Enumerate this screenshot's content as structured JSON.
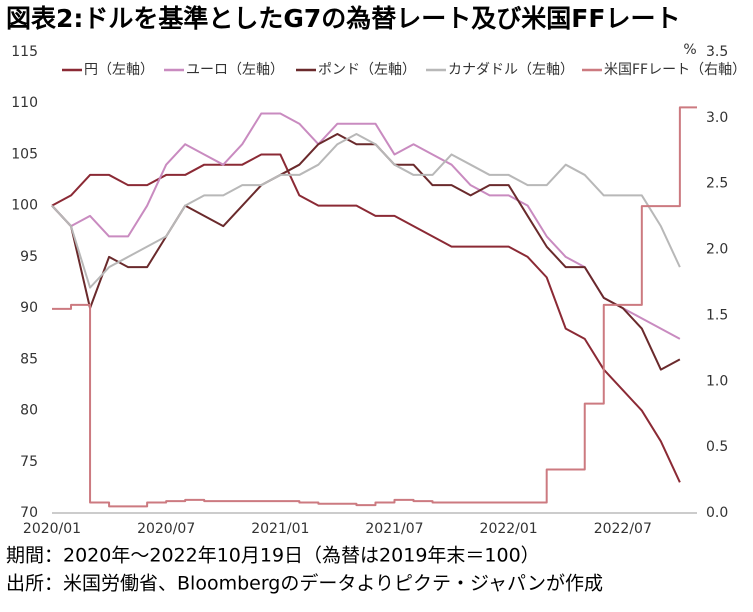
{
  "chart_data": {
    "type": "line",
    "title": "図表2:ドルを基準としたG7の為替レート及び米国FFレート",
    "x": [
      "2020/01",
      "2020/02",
      "2020/03",
      "2020/04",
      "2020/05",
      "2020/06",
      "2020/07",
      "2020/08",
      "2020/09",
      "2020/10",
      "2020/11",
      "2020/12",
      "2021/01",
      "2021/02",
      "2021/03",
      "2021/04",
      "2021/05",
      "2021/06",
      "2021/07",
      "2021/08",
      "2021/09",
      "2021/10",
      "2021/11",
      "2021/12",
      "2022/01",
      "2022/02",
      "2022/03",
      "2022/04",
      "2022/05",
      "2022/06",
      "2022/07",
      "2022/08",
      "2022/09",
      "2022/10"
    ],
    "xticks": [
      "2020/01",
      "2020/07",
      "2021/01",
      "2021/07",
      "2022/01",
      "2022/07"
    ],
    "series": [
      {
        "name": "円（左軸）",
        "color": "#8b2a35",
        "values": [
          100,
          101,
          103,
          103,
          102,
          102,
          103,
          103,
          104,
          104,
          104,
          105,
          105,
          101,
          100,
          100,
          100,
          99,
          99,
          98,
          97,
          96,
          96,
          96,
          96,
          95,
          93,
          88,
          87,
          84,
          82,
          80,
          77,
          73
        ]
      },
      {
        "name": "ユーロ（左軸）",
        "color": "#c98bc0",
        "values": [
          100,
          98,
          99,
          97,
          97,
          100,
          104,
          106,
          105,
          104,
          106,
          109,
          109,
          108,
          106,
          108,
          108,
          108,
          105,
          106,
          105,
          104,
          102,
          101,
          101,
          100,
          97,
          95,
          94,
          91,
          90,
          89,
          88,
          87
        ]
      },
      {
        "name": "ポンド（左軸）",
        "color": "#6a2a2c",
        "values": [
          100,
          98,
          90,
          95,
          94,
          94,
          97,
          100,
          99,
          98,
          100,
          102,
          103,
          104,
          106,
          107,
          106,
          106,
          104,
          104,
          102,
          102,
          101,
          102,
          102,
          99,
          96,
          94,
          94,
          91,
          90,
          88,
          84,
          85
        ]
      },
      {
        "name": "カナダドル（左軸）",
        "color": "#b8b8b8",
        "values": [
          100,
          98,
          92,
          94,
          95,
          96,
          97,
          100,
          101,
          101,
          102,
          102,
          103,
          103,
          104,
          106,
          107,
          106,
          104,
          103,
          103,
          105,
          104,
          103,
          103,
          102,
          102,
          104,
          103,
          101,
          101,
          101,
          98,
          94
        ]
      },
      {
        "name": "米国FFレート（右軸）",
        "color": "#cc7a80",
        "axis": "y2",
        "step": true,
        "values": [
          1.55,
          1.58,
          0.08,
          0.05,
          0.05,
          0.08,
          0.09,
          0.1,
          0.09,
          0.09,
          0.09,
          0.09,
          0.09,
          0.08,
          0.07,
          0.07,
          0.06,
          0.08,
          0.1,
          0.09,
          0.08,
          0.08,
          0.08,
          0.08,
          0.08,
          0.08,
          0.33,
          0.33,
          0.83,
          1.58,
          1.58,
          2.33,
          2.33,
          3.08
        ]
      }
    ],
    "ylim": [
      70,
      115
    ],
    "yticks": [
      70,
      75,
      80,
      85,
      90,
      95,
      100,
      105,
      110,
      115
    ],
    "y2lim": [
      0,
      3.5
    ],
    "y2label": "%",
    "y2ticks": [
      {
        "value": 0,
        "label": "0.0"
      },
      0.5,
      {
        "value": 1,
        "label": "1.0"
      },
      1.5,
      {
        "value": 2,
        "label": "2.0"
      },
      2.5,
      {
        "value": 3,
        "label": "3.0"
      },
      3.5
    ],
    "grid": false,
    "legend": "top",
    "notes": [
      "期間：2020年～2022年10月19日（為替は2019年末＝100）",
      "出所：米国労働省、Bloombergのデータよりピクテ・ジャパンが作成"
    ]
  }
}
